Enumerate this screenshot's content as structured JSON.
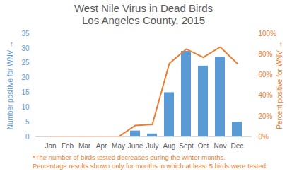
{
  "chart_data": {
    "type": "bar",
    "title": "West Nile Virus in Dead Birds",
    "subtitle": "Los Angeles County, 2015",
    "annotations": [
      "*The number of birds tested decreases during the winter months.",
      "Percentage results shown only for months in which at least 5 birds were tested."
    ],
    "categories": [
      "Jan",
      "Feb",
      "Mar",
      "Apr",
      "May",
      "June",
      "July",
      "Aug",
      "Sept",
      "Oct",
      "Nov",
      "Dec"
    ],
    "series": [
      {
        "type": "bar",
        "color": "#5b9bd5",
        "values": [
          0,
          0,
          0,
          0,
          0,
          2,
          1,
          15,
          29,
          24,
          27,
          5
        ]
      },
      {
        "type": "line",
        "axis": "y2",
        "color": "#ed7d31",
        "values": [
          0,
          0,
          0,
          0,
          0,
          11,
          12,
          71,
          85,
          77,
          87,
          71
        ]
      }
    ],
    "ylabel": "Number positive for WNV",
    "y2label": "Percent positive for WNV",
    "ylim": [
      0,
      35
    ],
    "yticks": [
      0,
      5,
      10,
      15,
      20,
      25,
      30,
      35
    ],
    "y2lim": [
      0,
      100
    ],
    "y2ticks": [
      {
        "value": 0,
        "label": "0%"
      },
      {
        "value": 20,
        "label": "20%"
      },
      {
        "value": 40,
        "label": "40%"
      },
      {
        "value": 60,
        "label": "60%"
      },
      {
        "value": 80,
        "label": "80%"
      },
      {
        "value": 100,
        "label": "100%"
      }
    ],
    "grid": false
  }
}
